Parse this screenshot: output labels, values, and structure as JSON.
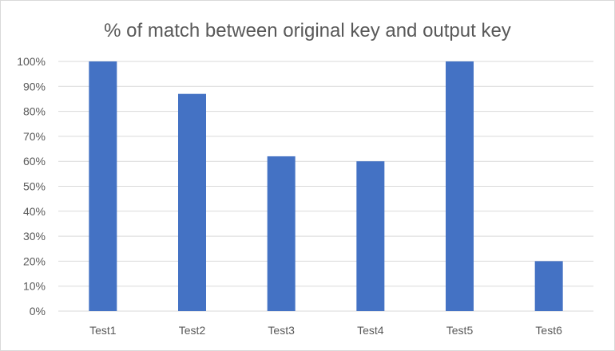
{
  "chart_data": {
    "type": "bar",
    "title": "% of match between original key and output key",
    "categories": [
      "Test1",
      "Test2",
      "Test3",
      "Test4",
      "Test5",
      "Test6"
    ],
    "values": [
      100,
      87,
      62,
      60,
      100,
      20
    ],
    "ylim": [
      0,
      100
    ],
    "yticks": [
      0,
      10,
      20,
      30,
      40,
      50,
      60,
      70,
      80,
      90,
      100
    ],
    "ytick_labels": [
      "0%",
      "10%",
      "20%",
      "30%",
      "40%",
      "50%",
      "60%",
      "70%",
      "80%",
      "90%",
      "100%"
    ],
    "bar_color": "#4472C4",
    "grid_color": "#d9d9d9",
    "grid": true,
    "legend": false
  }
}
